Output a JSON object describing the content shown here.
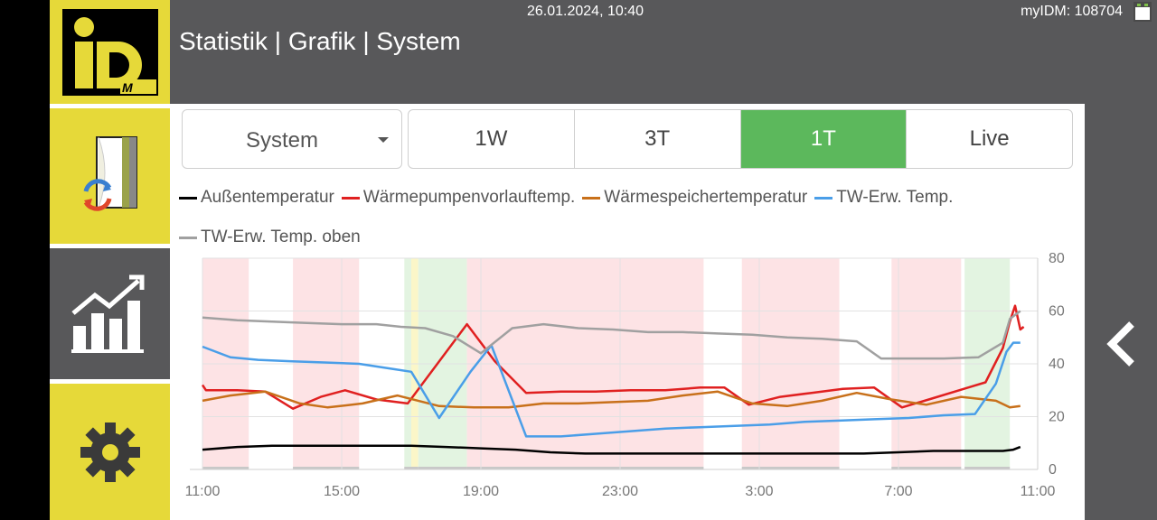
{
  "header": {
    "datetime": "26.01.2024, 10:40",
    "device": "myIDM: 108704",
    "title": "Statistik | Grafik | System"
  },
  "sidebar": {
    "logo_text": "iD",
    "logo_sub": "M",
    "items": [
      {
        "name": "system",
        "icon": "system-icon"
      },
      {
        "name": "statistics",
        "icon": "chart-icon",
        "active": true
      },
      {
        "name": "settings",
        "icon": "gear-icon"
      }
    ]
  },
  "controls": {
    "dropdown_value": "System",
    "ranges": [
      "1W",
      "3T",
      "1T",
      "Live"
    ],
    "active_range": "1T"
  },
  "colors": {
    "accent": "#5cb85c",
    "brand_yellow": "#e6d939",
    "bar_gray": "#58585a"
  },
  "chart_data": {
    "type": "line",
    "legend": [
      {
        "name": "Außentemperatur",
        "color": "#000000"
      },
      {
        "name": "Wärmepumpenvorlauftemp.",
        "color": "#e02020"
      },
      {
        "name": "Wärmespeichertemperatur",
        "color": "#c8701a"
      },
      {
        "name": "TW-Erw. Temp.",
        "color": "#4a9ee8"
      },
      {
        "name": "TW-Erw. Temp. oben",
        "color": "#a0a0a0"
      }
    ],
    "x_ticks": [
      "11:00",
      "15:00",
      "19:00",
      "23:00",
      "3:00",
      "7:00",
      "11:00"
    ],
    "y_ticks": [
      0,
      20,
      40,
      60,
      80
    ],
    "ylim": [
      0,
      80
    ],
    "xlim": [
      0,
      24
    ],
    "bands": [
      {
        "from": 0,
        "to": 1.33,
        "type": "red"
      },
      {
        "from": 2.6,
        "to": 4.5,
        "type": "red"
      },
      {
        "from": 5.8,
        "to": 6.0,
        "type": "green"
      },
      {
        "from": 6.0,
        "to": 6.2,
        "type": "yellow"
      },
      {
        "from": 6.2,
        "to": 7.6,
        "type": "green"
      },
      {
        "from": 7.6,
        "to": 14.4,
        "type": "red"
      },
      {
        "from": 15.5,
        "to": 18.3,
        "type": "red"
      },
      {
        "from": 19.8,
        "to": 21.8,
        "type": "red"
      },
      {
        "from": 21.9,
        "to": 23.2,
        "type": "green"
      }
    ],
    "series": [
      {
        "name": "Außentemperatur",
        "color": "#000000",
        "x": [
          0,
          1,
          2,
          3,
          4,
          5,
          6,
          7,
          8,
          9,
          10,
          11,
          12,
          13,
          14,
          15,
          16,
          17,
          18,
          19,
          20,
          21,
          22,
          23,
          23.3,
          23.5
        ],
        "y": [
          7.5,
          8.5,
          9,
          9,
          9,
          9,
          9,
          8.5,
          8,
          7.5,
          6.5,
          6,
          6,
          6,
          6,
          6,
          6,
          6,
          6,
          6,
          6.5,
          7,
          7,
          7,
          7.5,
          8.5
        ]
      },
      {
        "name": "Wärmepumpenvorlauftemp.",
        "color": "#e02020",
        "x": [
          0,
          0.1,
          1,
          1.8,
          2.6,
          3.4,
          4.1,
          5.0,
          5.9,
          7.6,
          8.4,
          9.3,
          10.3,
          11.3,
          12.3,
          13.3,
          14.3,
          15.0,
          15.7,
          16.6,
          17.5,
          18.4,
          19.3,
          20.1,
          21.0,
          22.0,
          22.5,
          23.0,
          23.2,
          23.35,
          23.5,
          23.6
        ],
        "y": [
          32,
          30,
          30,
          29.5,
          23,
          27.5,
          30,
          26.5,
          25,
          55,
          41,
          29,
          29.5,
          29.5,
          30,
          30,
          31,
          31,
          24.5,
          27.5,
          29,
          30.5,
          31,
          23.5,
          27,
          31,
          33,
          46,
          56,
          62,
          53,
          54
        ]
      },
      {
        "name": "Wärmespeichertemperatur",
        "color": "#c8701a",
        "x": [
          0,
          0.8,
          1.8,
          2.8,
          3.6,
          4.6,
          5.6,
          6.8,
          7.8,
          8.8,
          9.8,
          10.8,
          11.8,
          12.8,
          13.8,
          14.8,
          15.8,
          16.8,
          17.8,
          18.8,
          19.8,
          20.8,
          21.8,
          22.8,
          23.2,
          23.5
        ],
        "y": [
          26,
          28,
          29.5,
          25,
          23.5,
          25,
          28,
          24,
          23.5,
          23.5,
          25,
          25,
          25.5,
          26,
          28,
          29.5,
          25,
          24,
          26,
          29,
          26.5,
          24.5,
          27.5,
          26,
          23.5,
          24
        ]
      },
      {
        "name": "TW-Erw. Temp.",
        "color": "#4a9ee8",
        "x": [
          0,
          0.8,
          1.6,
          2.5,
          3.5,
          4.5,
          5.5,
          6.0,
          6.8,
          7.7,
          8.3,
          9.3,
          10.3,
          11.3,
          12.3,
          13.3,
          14.3,
          15.3,
          16.3,
          17.3,
          18.3,
          19.3,
          20.3,
          21.3,
          22.2,
          22.8,
          23.1,
          23.3,
          23.5
        ],
        "y": [
          46.5,
          42.5,
          41.5,
          41,
          40.5,
          40,
          38,
          37,
          19.5,
          37,
          47,
          12.5,
          12.5,
          13.5,
          14.5,
          15.5,
          16,
          16.5,
          17,
          18,
          18.5,
          19,
          19.5,
          20.5,
          21,
          32.5,
          44.5,
          48,
          48
        ]
      },
      {
        "name": "TW-Erw. Temp. oben",
        "color": "#a0a0a0",
        "x": [
          0,
          1,
          2,
          3,
          4,
          5,
          5.7,
          6.4,
          7.2,
          8.0,
          8.9,
          9.8,
          10.8,
          11.8,
          12.8,
          13.8,
          14.8,
          15.8,
          16.8,
          17.8,
          18.8,
          19.5,
          20.3,
          21.3,
          22.3,
          23.0,
          23.2,
          23.5
        ],
        "y": [
          57.5,
          56.5,
          56,
          55.5,
          55,
          55,
          54,
          53.5,
          50.5,
          44,
          53.5,
          55,
          53.5,
          53,
          52,
          52,
          51.5,
          51,
          50,
          49.5,
          48.5,
          42,
          42,
          42,
          42.5,
          48,
          57,
          60
        ]
      }
    ]
  }
}
